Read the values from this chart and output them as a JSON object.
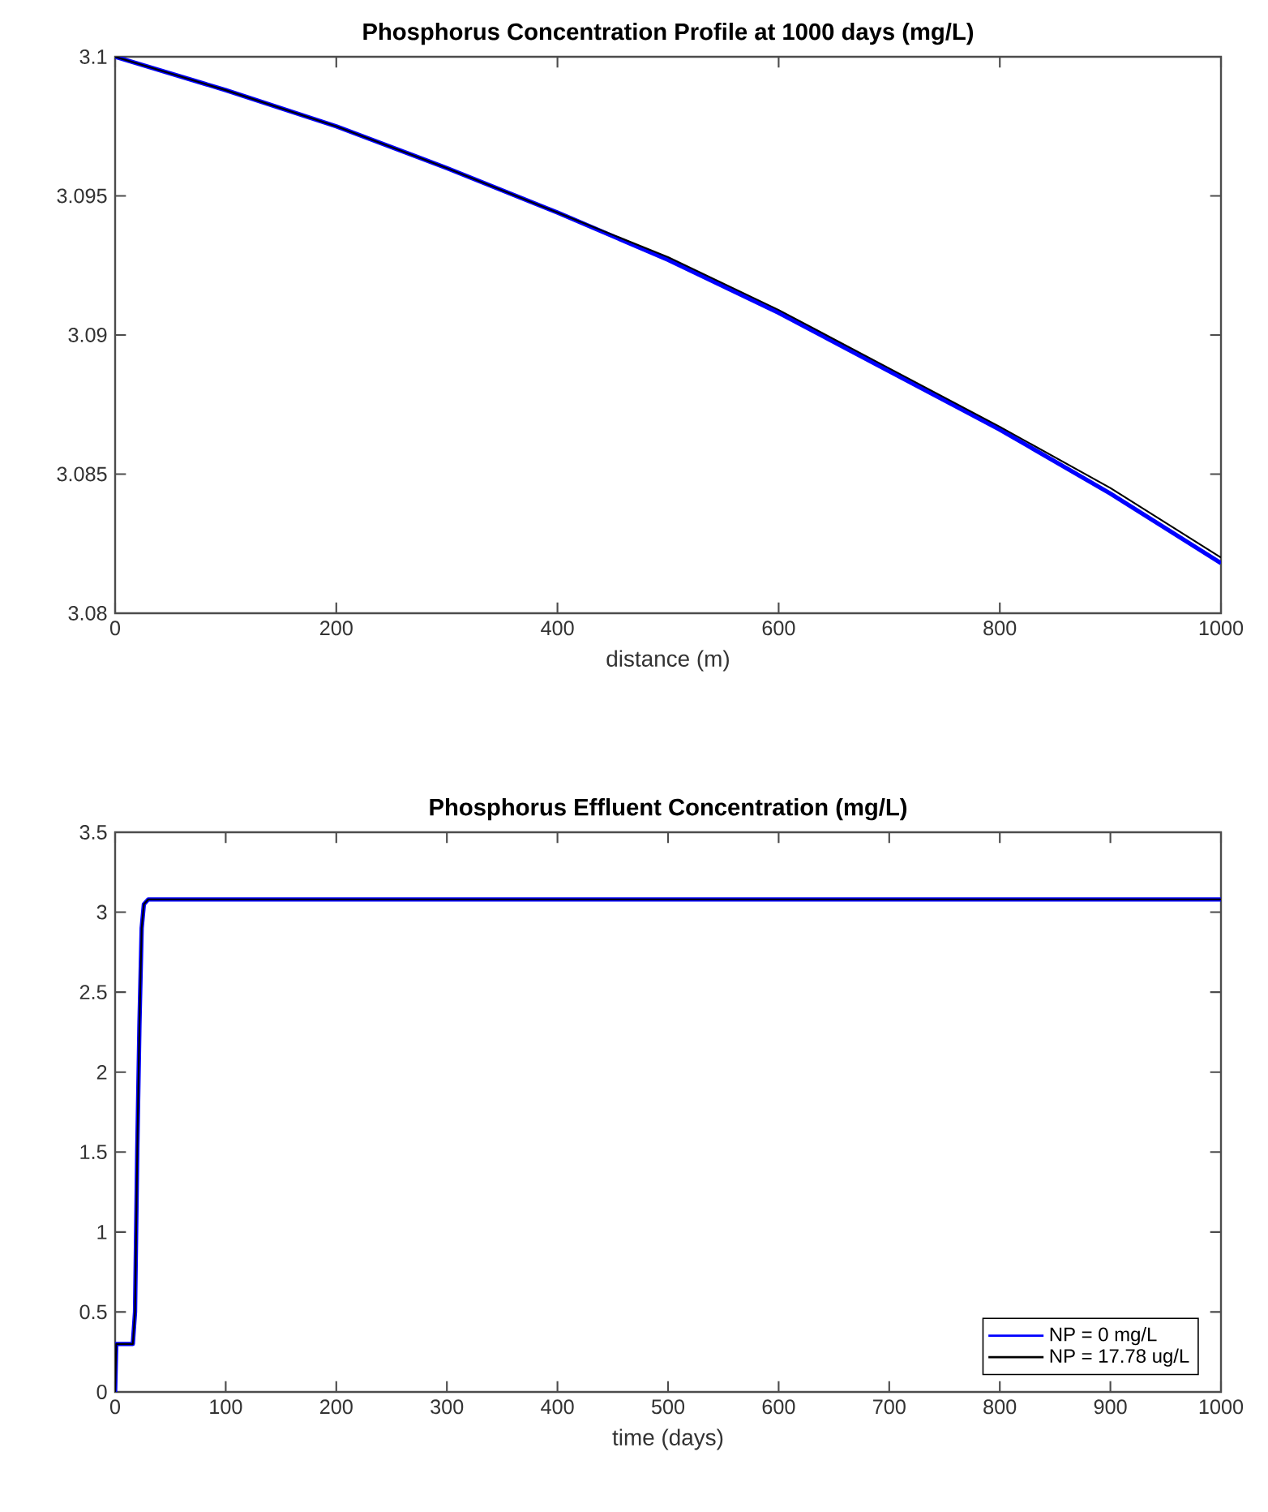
{
  "chart_data": [
    {
      "type": "line",
      "title": "Phosphorus Concentration Profile at 1000 days (mg/L)",
      "xlabel": "distance (m)",
      "series": [
        {
          "color": "#0000ff",
          "x": [
            0,
            100,
            200,
            300,
            400,
            500,
            600,
            700,
            800,
            900,
            1000
          ],
          "values": [
            3.1,
            3.0988,
            3.0975,
            3.096,
            3.0944,
            3.0927,
            3.0908,
            3.0887,
            3.0866,
            3.0843,
            3.0818
          ]
        },
        {
          "color": "#000000",
          "x": [
            0,
            100,
            200,
            300,
            400,
            500,
            600,
            700,
            800,
            900,
            1000
          ],
          "values": [
            3.1,
            3.0988,
            3.0975,
            3.096,
            3.0944,
            3.0928,
            3.0909,
            3.0888,
            3.0867,
            3.0845,
            3.082
          ]
        }
      ],
      "xlim": [
        0,
        1000
      ],
      "ylim": [
        3.08,
        3.1
      ],
      "xticks": [
        0,
        200,
        400,
        600,
        800,
        1000
      ],
      "yticks": [
        3.08,
        3.085,
        3.09,
        3.095,
        3.1
      ],
      "grid": false,
      "legend": false
    },
    {
      "type": "line",
      "title": "Phosphorus Effluent Concentration (mg/L)",
      "xlabel": "time (days)",
      "series": [
        {
          "name": "NP = 0 mg/L",
          "color": "#0000ff",
          "x": [
            0,
            1,
            16,
            18,
            20,
            22,
            24,
            26,
            30,
            1000
          ],
          "values": [
            0,
            0.3,
            0.3,
            0.5,
            1.5,
            2.3,
            2.9,
            3.05,
            3.08,
            3.08
          ]
        },
        {
          "name": "NP = 17.78 ug/L",
          "color": "#000000",
          "x": [
            0,
            1,
            16,
            18,
            20,
            22,
            24,
            26,
            30,
            1000
          ],
          "values": [
            0,
            0.3,
            0.3,
            0.5,
            1.5,
            2.3,
            2.9,
            3.05,
            3.08,
            3.08
          ]
        }
      ],
      "xlim": [
        0,
        1000
      ],
      "ylim": [
        0,
        3.5
      ],
      "xticks": [
        0,
        100,
        200,
        300,
        400,
        500,
        600,
        700,
        800,
        900,
        1000
      ],
      "yticks": [
        0,
        0.5,
        1,
        1.5,
        2,
        2.5,
        3,
        3.5
      ],
      "grid": false,
      "legend": "bottom right"
    }
  ]
}
